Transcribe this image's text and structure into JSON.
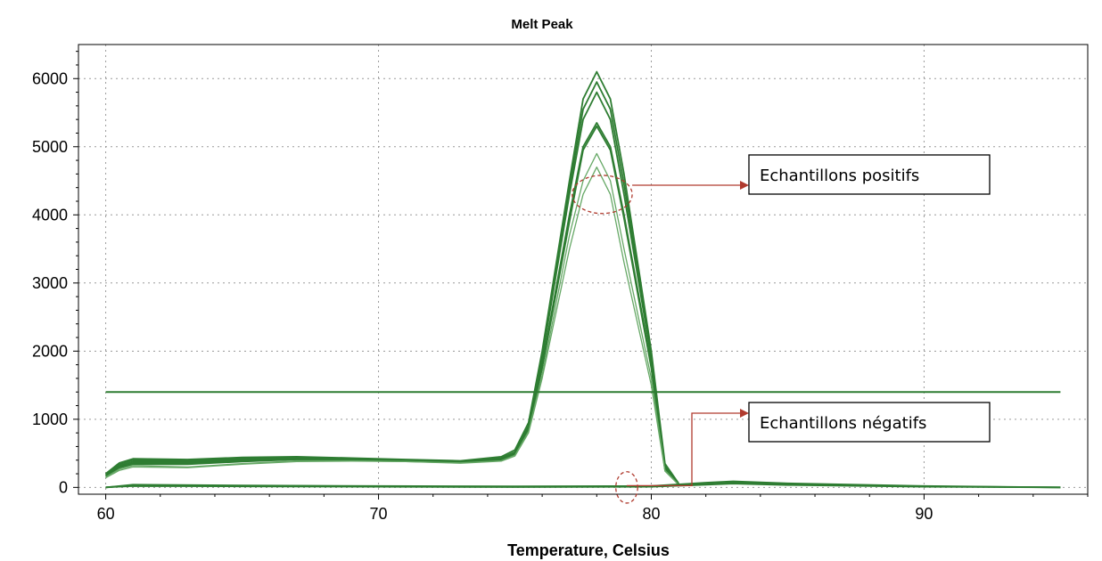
{
  "chart_data": {
    "type": "line",
    "title": "Melt Peak",
    "xlabel": "Temperature, Celsius",
    "ylabel": "",
    "xlim": [
      59,
      96
    ],
    "ylim": [
      -100,
      6500
    ],
    "xticks": [
      60,
      70,
      80,
      90
    ],
    "yticks": [
      0,
      1000,
      2000,
      3000,
      4000,
      5000,
      6000
    ],
    "grid": true,
    "threshold": 1400,
    "colors": {
      "positive": "#2e7d32",
      "positive_light": "#66a866",
      "negative": "#2e7d32",
      "threshold": "#2e7d32",
      "annotation": "#b03a2e"
    },
    "series": [
      {
        "group": "positive",
        "x": [
          60,
          60.5,
          61,
          63,
          65,
          67,
          69,
          71,
          73,
          74.5,
          75,
          75.5,
          76,
          77,
          77.5,
          78,
          78.5,
          79,
          80,
          80.5,
          81
        ],
        "y": [
          200,
          360,
          420,
          410,
          440,
          450,
          430,
          410,
          390,
          450,
          550,
          950,
          2000,
          4500,
          5700,
          6100,
          5700,
          4600,
          2000,
          350,
          60
        ]
      },
      {
        "group": "positive",
        "x": [
          60,
          60.5,
          61,
          63,
          65,
          67,
          69,
          71,
          73,
          74.5,
          75,
          75.5,
          76,
          77,
          77.5,
          78,
          78.5,
          79,
          80,
          80.5,
          81
        ],
        "y": [
          190,
          340,
          400,
          395,
          420,
          440,
          420,
          400,
          380,
          430,
          520,
          900,
          1950,
          4400,
          5550,
          5950,
          5550,
          4450,
          1950,
          320,
          55
        ]
      },
      {
        "group": "positive",
        "x": [
          60,
          60.5,
          61,
          63,
          65,
          67,
          69,
          71,
          73,
          74.5,
          75,
          75.5,
          76,
          77,
          77.5,
          78,
          78.5,
          79,
          80,
          80.5,
          81
        ],
        "y": [
          180,
          320,
          380,
          380,
          410,
          430,
          410,
          395,
          375,
          420,
          500,
          880,
          1900,
          4300,
          5400,
          5800,
          5400,
          4300,
          1900,
          300,
          50
        ]
      },
      {
        "group": "positive",
        "x": [
          60,
          60.5,
          61,
          63,
          65,
          67,
          69,
          71,
          73,
          74.5,
          75,
          75.5,
          76,
          77,
          77.5,
          78,
          78.5,
          79,
          80,
          80.5,
          81
        ],
        "y": [
          170,
          300,
          360,
          360,
          395,
          420,
          400,
          390,
          370,
          410,
          490,
          860,
          1800,
          4000,
          5000,
          5350,
          5000,
          4000,
          1800,
          280,
          45
        ]
      },
      {
        "group": "positive",
        "x": [
          60,
          60.5,
          61,
          63,
          65,
          67,
          69,
          71,
          73,
          74.5,
          75,
          75.5,
          76,
          77,
          77.5,
          78,
          78.5,
          79,
          80,
          80.5,
          81
        ],
        "y": [
          160,
          290,
          340,
          340,
          380,
          410,
          395,
          385,
          365,
          400,
          480,
          840,
          1750,
          3900,
          4950,
          5300,
          4950,
          3950,
          1750,
          270,
          45
        ]
      },
      {
        "group": "positive_light",
        "x": [
          60,
          60.5,
          61,
          63,
          65,
          67,
          69,
          71,
          73,
          74.5,
          75,
          75.5,
          76,
          77,
          77.5,
          78,
          78.5,
          79,
          80,
          80.5,
          81
        ],
        "y": [
          150,
          270,
          320,
          300,
          350,
          390,
          390,
          380,
          360,
          390,
          470,
          820,
          1650,
          3700,
          4500,
          4900,
          4500,
          3500,
          1600,
          250,
          40
        ]
      },
      {
        "group": "positive_light",
        "x": [
          60,
          60.5,
          61,
          63,
          65,
          67,
          69,
          71,
          73,
          74.5,
          75,
          75.5,
          76,
          77,
          77.5,
          78,
          78.5,
          79,
          80,
          80.5,
          81
        ],
        "y": [
          140,
          250,
          300,
          290,
          340,
          380,
          385,
          378,
          355,
          385,
          460,
          800,
          1600,
          3500,
          4300,
          4700,
          4300,
          3300,
          1500,
          240,
          40
        ]
      },
      {
        "group": "negative",
        "x": [
          60,
          61,
          65,
          70,
          75,
          80,
          82,
          83,
          85,
          90,
          95
        ],
        "y": [
          0,
          40,
          30,
          20,
          15,
          20,
          70,
          90,
          60,
          20,
          0
        ]
      },
      {
        "group": "negative",
        "x": [
          60,
          61,
          65,
          70,
          75,
          80,
          82,
          83,
          85,
          90,
          95
        ],
        "y": [
          0,
          30,
          25,
          15,
          10,
          15,
          50,
          70,
          50,
          15,
          0
        ]
      },
      {
        "group": "negative",
        "x": [
          60,
          61,
          65,
          70,
          75,
          80,
          82,
          83,
          85,
          90,
          95
        ],
        "y": [
          0,
          20,
          15,
          10,
          5,
          10,
          40,
          55,
          35,
          10,
          0
        ]
      }
    ],
    "annotations": [
      {
        "name": "positive",
        "text": "Echantillons positifs",
        "ellipse_center": [
          78.2,
          4300
        ],
        "ellipse_rx": 1.1,
        "ellipse_ry": 280
      },
      {
        "name": "negative",
        "text": "Echantillons négatifs",
        "ellipse_center": [
          79.1,
          0
        ],
        "ellipse_rx": 0.4,
        "ellipse_ry": 230
      }
    ]
  }
}
